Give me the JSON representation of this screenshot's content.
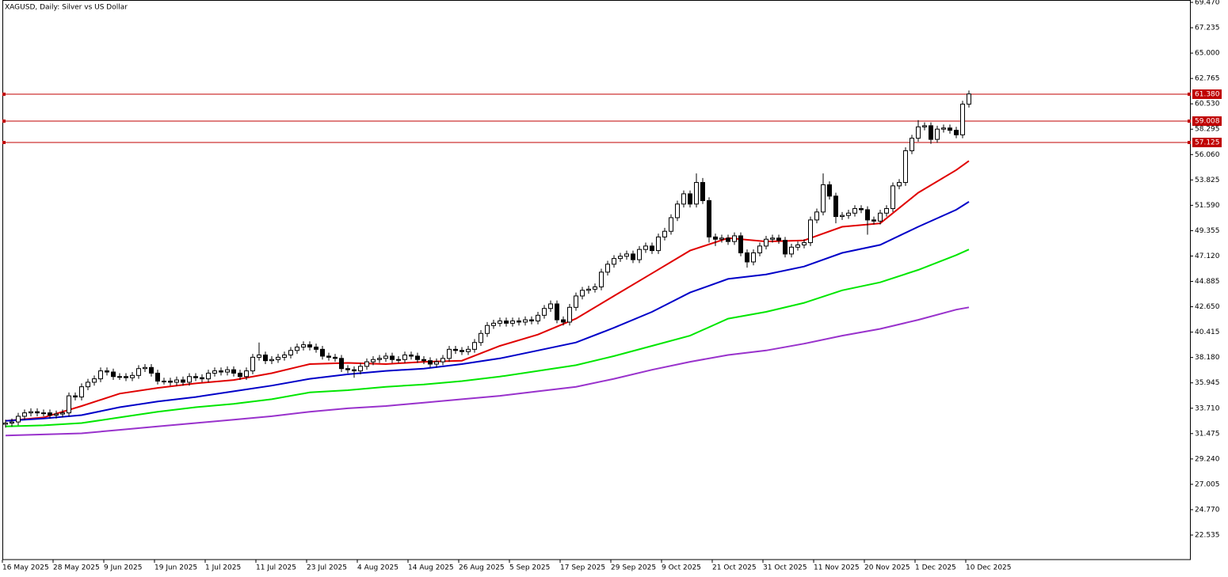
{
  "chart_data": {
    "type": "candlestick",
    "title": "XAGUSD, Daily:  Silver vs US Dollar",
    "categories": [
      "16 May 2025",
      null,
      null,
      null,
      null,
      null,
      null,
      null,
      "28 May 2025",
      null,
      null,
      null,
      null,
      null,
      null,
      null,
      "9 Jun 2025",
      null,
      null,
      null,
      null,
      null,
      null,
      null,
      "19 Jun 2025",
      null,
      null,
      null,
      null,
      null,
      null,
      null,
      "1 Jul 2025",
      null,
      null,
      null,
      null,
      null,
      null,
      null,
      "11 Jul 2025",
      null,
      null,
      null,
      null,
      null,
      null,
      null,
      "23 Jul 2025",
      null,
      null,
      null,
      null,
      null,
      null,
      null,
      "4 Aug 2025",
      null,
      null,
      null,
      null,
      null,
      null,
      null,
      "14 Aug 2025",
      null,
      null,
      null,
      null,
      null,
      null,
      null,
      "26 Aug 2025",
      null,
      null,
      null,
      null,
      null,
      null,
      null,
      "5 Sep 2025",
      null,
      null,
      null,
      null,
      null,
      null,
      null,
      "17 Sep 2025",
      null,
      null,
      null,
      null,
      null,
      null,
      null,
      "29 Sep 2025",
      null,
      null,
      null,
      null,
      null,
      null,
      null,
      "9 Oct 2025",
      null,
      null,
      null,
      null,
      null,
      null,
      null,
      "21 Oct 2025",
      null,
      null,
      null,
      null,
      null,
      null,
      null,
      "31 Oct 2025",
      null,
      null,
      null,
      null,
      null,
      null,
      null,
      "11 Nov 2025",
      null,
      null,
      null,
      null,
      null,
      null,
      null,
      "20 Nov 2025",
      null,
      null,
      null,
      null,
      null,
      null,
      null,
      "1 Dec 2025",
      null,
      null,
      null,
      null,
      null,
      null,
      null,
      "10 Dec 2025"
    ],
    "open": [
      32.3,
      32.4,
      32.5,
      33.0,
      33.3,
      33.4,
      33.3,
      33.3,
      33.1,
      33.2,
      33.3,
      34.8,
      34.7,
      35.6,
      36.0,
      36.3,
      37.0,
      36.9,
      36.5,
      36.5,
      36.4,
      36.6,
      37.2,
      37.3,
      36.8,
      36.1,
      36.1,
      36.0,
      36.2,
      36.0,
      36.5,
      36.4,
      36.3,
      36.8,
      37.0,
      36.9,
      37.1,
      36.8,
      36.5,
      37.0,
      38.2,
      38.4,
      37.9,
      38.0,
      38.2,
      38.4,
      38.8,
      39.1,
      39.3,
      39.1,
      38.9,
      38.3,
      38.2,
      38.1,
      37.2,
      37.1,
      37.0,
      37.4,
      37.8,
      38.0,
      38.1,
      38.3,
      38.0,
      38.0,
      38.4,
      38.3,
      38.0,
      37.9,
      37.6,
      37.8,
      38.1,
      38.9,
      38.8,
      38.7,
      38.9,
      39.5,
      40.3,
      41.0,
      41.2,
      41.4,
      41.2,
      41.4,
      41.3,
      41.5,
      41.4,
      41.9,
      42.5,
      42.9,
      41.5,
      41.3,
      42.6,
      43.6,
      44.1,
      44.2,
      44.4,
      45.7,
      46.4,
      46.9,
      47.1,
      47.3,
      46.8,
      47.7,
      48.0,
      47.6,
      48.8,
      49.3,
      50.5,
      51.7,
      52.6,
      51.7,
      53.6,
      52.0,
      48.8,
      48.6,
      48.7,
      48.4,
      48.9,
      47.4,
      46.6,
      47.4,
      48.0,
      48.6,
      48.7,
      48.5,
      47.3,
      47.9,
      48.1,
      48.3,
      50.3,
      51.0,
      53.4,
      52.4,
      50.6,
      50.7,
      50.9,
      51.3,
      51.2,
      50.3,
      50.2,
      50.9,
      51.3,
      53.3,
      53.6,
      56.4,
      57.5,
      58.5,
      58.6,
      57.4,
      58.3,
      58.4,
      58.2,
      57.8,
      60.5
    ],
    "high": [
      32.7,
      32.8,
      33.3,
      33.6,
      33.7,
      33.7,
      33.6,
      33.6,
      33.5,
      33.6,
      35.1,
      35.1,
      35.9,
      36.3,
      36.6,
      37.3,
      37.3,
      37.2,
      36.8,
      36.8,
      36.9,
      37.5,
      37.6,
      37.6,
      37.1,
      36.4,
      36.4,
      36.5,
      36.5,
      36.8,
      36.8,
      36.7,
      37.1,
      37.3,
      37.3,
      37.4,
      37.4,
      37.1,
      37.3,
      38.5,
      39.5,
      38.7,
      38.3,
      38.5,
      38.7,
      39.1,
      39.4,
      39.6,
      39.6,
      39.4,
      39.2,
      38.6,
      38.5,
      38.4,
      37.5,
      37.4,
      37.7,
      38.1,
      38.3,
      38.4,
      38.6,
      38.6,
      38.3,
      38.7,
      38.7,
      38.6,
      38.3,
      38.2,
      38.1,
      38.4,
      39.2,
      39.2,
      39.1,
      39.2,
      39.8,
      40.6,
      41.3,
      41.5,
      41.7,
      41.7,
      41.7,
      41.7,
      41.8,
      41.8,
      42.2,
      42.8,
      43.2,
      43.2,
      41.8,
      42.9,
      43.9,
      44.4,
      44.5,
      44.7,
      46.0,
      46.7,
      47.2,
      47.4,
      47.6,
      47.6,
      48.0,
      48.3,
      48.3,
      49.1,
      49.6,
      50.8,
      52.0,
      52.9,
      52.9,
      54.4,
      54.0,
      52.3,
      49.1,
      49.0,
      49.0,
      49.2,
      49.2,
      47.7,
      47.7,
      48.3,
      48.9,
      49.0,
      49.0,
      48.8,
      48.2,
      48.4,
      48.6,
      50.6,
      51.3,
      54.4,
      53.7,
      52.7,
      51.0,
      51.2,
      51.6,
      51.6,
      51.5,
      50.6,
      51.2,
      51.6,
      53.6,
      53.9,
      56.7,
      57.8,
      59.1,
      58.9,
      58.9,
      58.6,
      58.7,
      58.7,
      58.5,
      60.8,
      61.7
    ],
    "low": [
      32.0,
      32.1,
      32.2,
      32.7,
      33.0,
      33.0,
      33.0,
      32.8,
      32.8,
      32.9,
      33.0,
      34.4,
      34.4,
      35.3,
      35.7,
      36.0,
      36.6,
      36.2,
      36.2,
      36.1,
      36.1,
      36.3,
      36.9,
      36.5,
      35.8,
      35.8,
      35.7,
      35.7,
      35.7,
      35.7,
      36.1,
      36.0,
      36.0,
      36.5,
      36.6,
      36.6,
      36.5,
      36.2,
      36.2,
      36.7,
      37.9,
      37.6,
      37.6,
      37.7,
      37.9,
      38.1,
      38.5,
      38.8,
      38.8,
      38.6,
      38.0,
      37.9,
      37.8,
      36.9,
      36.8,
      36.4,
      36.7,
      37.1,
      37.5,
      37.7,
      37.8,
      37.7,
      37.7,
      37.7,
      38.0,
      37.7,
      37.6,
      37.3,
      37.3,
      37.5,
      37.8,
      38.5,
      38.4,
      38.4,
      38.6,
      39.2,
      40.0,
      40.7,
      40.9,
      40.9,
      40.9,
      41.0,
      41.0,
      41.1,
      41.1,
      41.6,
      42.2,
      41.2,
      41.0,
      41.0,
      42.3,
      43.3,
      43.8,
      43.9,
      44.1,
      45.4,
      46.1,
      46.6,
      46.8,
      46.5,
      46.5,
      47.4,
      47.3,
      47.3,
      48.5,
      49.0,
      50.2,
      51.4,
      51.4,
      51.4,
      51.7,
      48.3,
      48.0,
      48.3,
      48.1,
      48.1,
      47.1,
      46.1,
      46.3,
      47.1,
      47.7,
      48.3,
      48.2,
      47.0,
      47.0,
      47.6,
      47.8,
      48.0,
      50.0,
      50.7,
      52.1,
      50.0,
      50.3,
      50.4,
      50.6,
      50.9,
      49.0,
      49.9,
      49.9,
      50.6,
      51.0,
      53.0,
      53.3,
      56.1,
      57.2,
      58.2,
      57.0,
      57.1,
      58.0,
      57.9,
      57.5,
      57.5,
      60.2
    ],
    "close": [
      32.4,
      32.5,
      33.0,
      33.3,
      33.4,
      33.3,
      33.3,
      33.1,
      33.2,
      33.3,
      34.8,
      34.7,
      35.6,
      36.0,
      36.3,
      37.0,
      36.9,
      36.5,
      36.5,
      36.4,
      36.6,
      37.2,
      37.3,
      36.8,
      36.1,
      36.1,
      36.0,
      36.2,
      36.0,
      36.5,
      36.4,
      36.3,
      36.8,
      37.0,
      36.9,
      37.1,
      36.8,
      36.5,
      37.0,
      38.2,
      38.4,
      37.9,
      38.0,
      38.2,
      38.4,
      38.8,
      39.1,
      39.3,
      39.1,
      38.9,
      38.3,
      38.2,
      38.1,
      37.2,
      37.1,
      37.0,
      37.4,
      37.8,
      38.0,
      38.1,
      38.3,
      38.0,
      38.0,
      38.4,
      38.3,
      38.0,
      37.9,
      37.6,
      37.8,
      38.1,
      38.9,
      38.8,
      38.7,
      38.9,
      39.5,
      40.3,
      41.0,
      41.2,
      41.4,
      41.2,
      41.4,
      41.3,
      41.5,
      41.4,
      41.9,
      42.5,
      42.9,
      41.5,
      41.3,
      42.6,
      43.6,
      44.1,
      44.2,
      44.4,
      45.7,
      46.4,
      46.9,
      47.1,
      47.3,
      46.8,
      47.7,
      48.0,
      47.6,
      48.8,
      49.3,
      50.5,
      51.7,
      52.6,
      51.7,
      53.6,
      52.0,
      48.8,
      48.6,
      48.7,
      48.4,
      48.9,
      47.4,
      46.6,
      47.4,
      48.0,
      48.6,
      48.7,
      48.5,
      47.3,
      47.9,
      48.1,
      48.3,
      50.3,
      51.0,
      53.4,
      52.4,
      50.6,
      50.7,
      50.9,
      51.3,
      51.2,
      50.3,
      50.2,
      50.9,
      51.3,
      53.3,
      53.6,
      56.4,
      57.5,
      58.5,
      58.6,
      57.4,
      58.3,
      58.4,
      58.2,
      57.8,
      60.5,
      61.4
    ],
    "up_color": "#ffffff",
    "down_color": "#000000",
    "lines": [
      {
        "color": "#e00000",
        "x": [
          0,
          6,
          12,
          18,
          24,
          30,
          36,
          42,
          48,
          54,
          60,
          66,
          72,
          78,
          84,
          90,
          96,
          102,
          108,
          114,
          120,
          126,
          132,
          138,
          144,
          150,
          152
        ],
        "values": [
          32.6,
          32.9,
          33.9,
          35.0,
          35.5,
          35.9,
          36.2,
          36.8,
          37.6,
          37.7,
          37.6,
          37.8,
          37.9,
          39.2,
          40.2,
          41.6,
          43.6,
          45.6,
          47.6,
          48.7,
          48.4,
          48.5,
          49.7,
          50.0,
          52.7,
          54.7,
          55.5
        ]
      },
      {
        "color": "#0000c8",
        "x": [
          0,
          6,
          12,
          18,
          24,
          30,
          36,
          42,
          48,
          54,
          60,
          66,
          72,
          78,
          84,
          90,
          96,
          102,
          108,
          114,
          120,
          126,
          132,
          138,
          144,
          150,
          152
        ],
        "values": [
          32.6,
          32.8,
          33.1,
          33.8,
          34.3,
          34.7,
          35.2,
          35.7,
          36.3,
          36.7,
          37.0,
          37.2,
          37.6,
          38.1,
          38.8,
          39.5,
          40.8,
          42.2,
          43.9,
          45.1,
          45.5,
          46.2,
          47.4,
          48.1,
          49.7,
          51.2,
          51.9
        ]
      },
      {
        "color": "#00e600",
        "x": [
          0,
          6,
          12,
          18,
          24,
          30,
          36,
          42,
          48,
          54,
          60,
          66,
          72,
          78,
          84,
          90,
          96,
          102,
          108,
          114,
          120,
          126,
          132,
          138,
          144,
          150,
          152
        ],
        "values": [
          32.1,
          32.2,
          32.4,
          32.9,
          33.4,
          33.8,
          34.1,
          34.5,
          35.1,
          35.3,
          35.6,
          35.8,
          36.1,
          36.5,
          37.0,
          37.5,
          38.3,
          39.2,
          40.1,
          41.6,
          42.2,
          43.0,
          44.1,
          44.8,
          45.9,
          47.2,
          47.7
        ]
      },
      {
        "color": "#9932cc",
        "x": [
          0,
          6,
          12,
          18,
          24,
          30,
          36,
          42,
          48,
          54,
          60,
          66,
          72,
          78,
          84,
          90,
          96,
          102,
          108,
          114,
          120,
          126,
          132,
          138,
          144,
          150,
          152
        ],
        "values": [
          31.3,
          31.4,
          31.5,
          31.8,
          32.1,
          32.4,
          32.7,
          33.0,
          33.4,
          33.7,
          33.9,
          34.2,
          34.5,
          34.8,
          35.2,
          35.6,
          36.3,
          37.1,
          37.8,
          38.4,
          38.8,
          39.4,
          40.1,
          40.7,
          41.5,
          42.4,
          42.6
        ]
      }
    ],
    "hlines": [
      {
        "value": 61.38,
        "label": "61.380"
      },
      59.008,
      57.125
    ],
    "hline_color": "#c00000",
    "ylim": [
      20.373,
      69.47
    ],
    "yticks": [
      {
        "value": 69.47,
        "label": "69.470"
      },
      67.235,
      {
        "value": 65,
        "label": "65.000"
      },
      62.765,
      {
        "value": 60.53,
        "label": "60.530"
      },
      58.295,
      {
        "value": 56.06,
        "label": "56.060"
      },
      53.825,
      {
        "value": 51.59,
        "label": "51.590"
      },
      49.355,
      {
        "value": 47.12,
        "label": "47.120"
      },
      44.885,
      {
        "value": 42.65,
        "label": "42.650"
      },
      40.415,
      {
        "value": 38.18,
        "label": "38.180"
      },
      35.945,
      {
        "value": 33.71,
        "label": "33.710"
      },
      31.475,
      {
        "value": 29.24,
        "label": "29.240"
      },
      27.005,
      {
        "value": 24.77,
        "label": "24.770"
      },
      22.535
    ],
    "grid": false
  }
}
